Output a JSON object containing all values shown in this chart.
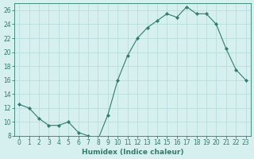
{
  "x": [
    0,
    1,
    2,
    3,
    4,
    5,
    6,
    7,
    8,
    9,
    10,
    11,
    12,
    13,
    14,
    15,
    16,
    17,
    18,
    19,
    20,
    21,
    22,
    23
  ],
  "y": [
    12.5,
    12.0,
    10.5,
    9.5,
    9.5,
    10.0,
    8.5,
    8.0,
    7.5,
    11.0,
    16.0,
    19.5,
    22.0,
    23.5,
    24.5,
    25.5,
    25.0,
    26.5,
    25.5,
    25.5,
    24.0,
    20.5,
    17.5,
    16.0
  ],
  "line_color": "#2e7d6e",
  "marker": "D",
  "marker_size": 2.2,
  "bg_color": "#d6f0ef",
  "grid_color": "#b8dedd",
  "xlabel": "Humidex (Indice chaleur)",
  "ylim": [
    8,
    27
  ],
  "xlim": [
    -0.5,
    23.5
  ],
  "yticks": [
    8,
    10,
    12,
    14,
    16,
    18,
    20,
    22,
    24,
    26
  ],
  "xticks": [
    0,
    1,
    2,
    3,
    4,
    5,
    6,
    7,
    8,
    9,
    10,
    11,
    12,
    13,
    14,
    15,
    16,
    17,
    18,
    19,
    20,
    21,
    22,
    23
  ],
  "tick_color": "#2e7d6e",
  "spine_color": "#2e7d6e",
  "label_fontsize": 6.5,
  "tick_fontsize": 5.5
}
